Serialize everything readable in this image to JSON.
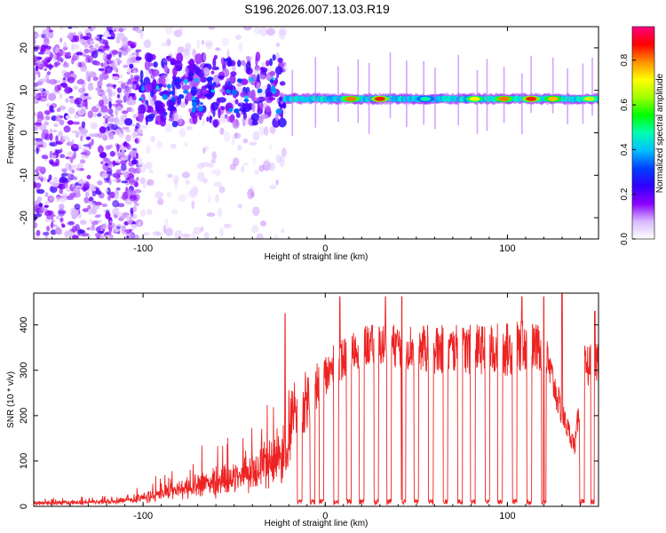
{
  "title": "S196.2026.007.13.03.R19",
  "chart_data": [
    {
      "type": "heatmap",
      "xlabel": "Height of straight line (km)",
      "ylabel": "Frequency (Hz)",
      "xlim": [
        -160,
        150
      ],
      "ylim": [
        -25,
        25
      ],
      "xticks": [
        -100,
        0,
        100
      ],
      "yticks": [
        -20,
        -10,
        0,
        10,
        20
      ],
      "colorbar": {
        "label": "Normalized spectral amplitude",
        "range": [
          0,
          0.95
        ],
        "ticks": [
          0.0,
          0.2,
          0.4,
          0.6,
          0.8
        ],
        "colors": [
          "#ffffff",
          "#d8b8ff",
          "#8a00ff",
          "#3000ff",
          "#0040ff",
          "#00c0ff",
          "#00ffb0",
          "#00ff00",
          "#a0ff00",
          "#ffff00",
          "#ff9000",
          "#ff0000",
          "#ff0080"
        ]
      },
      "main_band": {
        "x_start": -22,
        "x_end": 150,
        "frequency": 8,
        "peak_value": 0.9
      },
      "bright_segments": [
        {
          "x": 14,
          "value": 0.85
        },
        {
          "x": 30,
          "value": 0.9
        },
        {
          "x": 55,
          "value": 0.5
        },
        {
          "x": 82,
          "value": 0.75
        },
        {
          "x": 98,
          "value": 0.85
        },
        {
          "x": 113,
          "value": 0.9
        },
        {
          "x": 125,
          "value": 0.8
        },
        {
          "x": 145,
          "value": 0.7
        }
      ]
    },
    {
      "type": "line",
      "xlabel": "Height of straight line (km)",
      "ylabel": "SNR (10 * v/v)",
      "xlim": [
        -160,
        150
      ],
      "ylim": [
        0,
        470
      ],
      "xticks": [
        -100,
        0,
        100
      ],
      "yticks": [
        0,
        100,
        200,
        300,
        400
      ],
      "color": "#ee2222",
      "envelope": [
        {
          "x": -160,
          "base": 10,
          "amp": 12
        },
        {
          "x": -130,
          "base": 12,
          "amp": 15
        },
        {
          "x": -110,
          "base": 18,
          "amp": 25
        },
        {
          "x": -90,
          "base": 35,
          "amp": 55
        },
        {
          "x": -70,
          "base": 60,
          "amp": 90
        },
        {
          "x": -50,
          "base": 80,
          "amp": 110
        },
        {
          "x": -40,
          "base": 110,
          "amp": 130
        },
        {
          "x": -30,
          "base": 140,
          "amp": 150
        },
        {
          "x": -20,
          "base": 170,
          "amp": 170
        },
        {
          "x": -10,
          "base": 230,
          "amp": 130
        },
        {
          "x": 0,
          "base": 280,
          "amp": 110
        },
        {
          "x": 10,
          "base": 320,
          "amp": 100
        },
        {
          "x": 20,
          "base": 350,
          "amp": 90
        },
        {
          "x": 40,
          "base": 350,
          "amp": 100
        },
        {
          "x": 60,
          "base": 340,
          "amp": 110
        },
        {
          "x": 80,
          "base": 340,
          "amp": 110
        },
        {
          "x": 100,
          "base": 340,
          "amp": 120
        },
        {
          "x": 110,
          "base": 350,
          "amp": 110
        },
        {
          "x": 120,
          "base": 340,
          "amp": 110
        },
        {
          "x": 130,
          "base": 200,
          "amp": 60
        },
        {
          "x": 137,
          "base": 130,
          "amp": 40
        },
        {
          "x": 142,
          "base": 300,
          "amp": 100
        },
        {
          "x": 150,
          "base": 320,
          "amp": 100
        }
      ],
      "dropouts": [
        -14,
        -7,
        -2,
        6,
        13,
        20,
        28,
        35,
        43,
        50,
        58,
        66,
        74,
        81,
        89,
        96,
        104,
        112,
        120,
        141,
        147
      ],
      "spikes": [
        {
          "x": -22,
          "value": 425
        },
        {
          "x": 8,
          "value": 462
        },
        {
          "x": 33,
          "value": 462
        },
        {
          "x": 42,
          "value": 462
        },
        {
          "x": 108,
          "value": 462
        },
        {
          "x": 120,
          "value": 462
        },
        {
          "x": 130,
          "value": 468
        },
        {
          "x": 148,
          "value": 430
        }
      ]
    }
  ]
}
